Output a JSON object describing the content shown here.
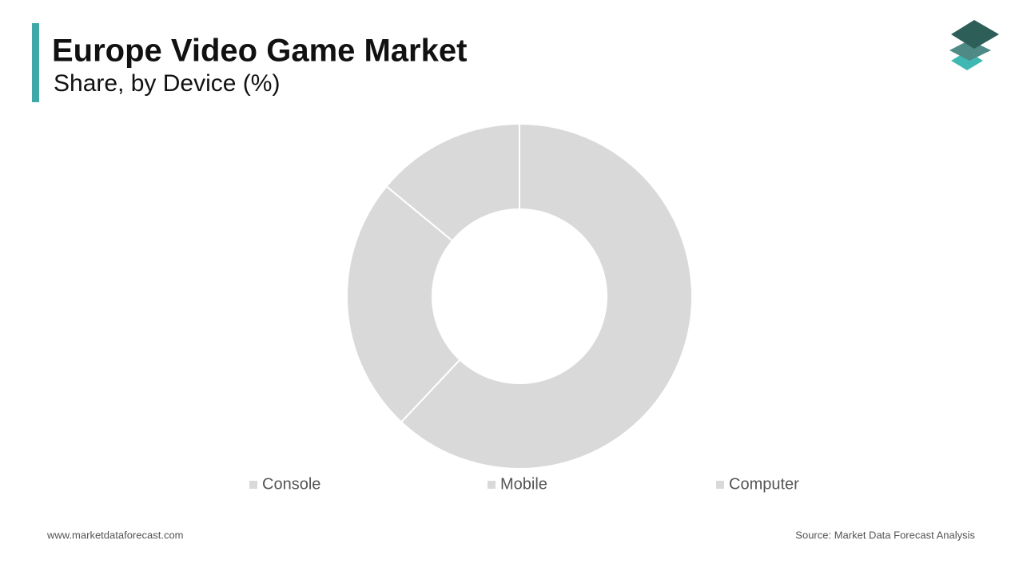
{
  "chart_data": {
    "type": "donut",
    "title": "Europe Video Game Market",
    "subtitle": "Share, by Device (%)",
    "categories": [
      "Console",
      "Mobile",
      "Computer"
    ],
    "values": [
      62,
      24,
      14
    ],
    "colors": [
      "#d9d9d9",
      "#d9d9d9",
      "#d9d9d9"
    ],
    "website": "www.marketdataforecast.com",
    "source": "Source: Market Data Forecast Analysis"
  }
}
